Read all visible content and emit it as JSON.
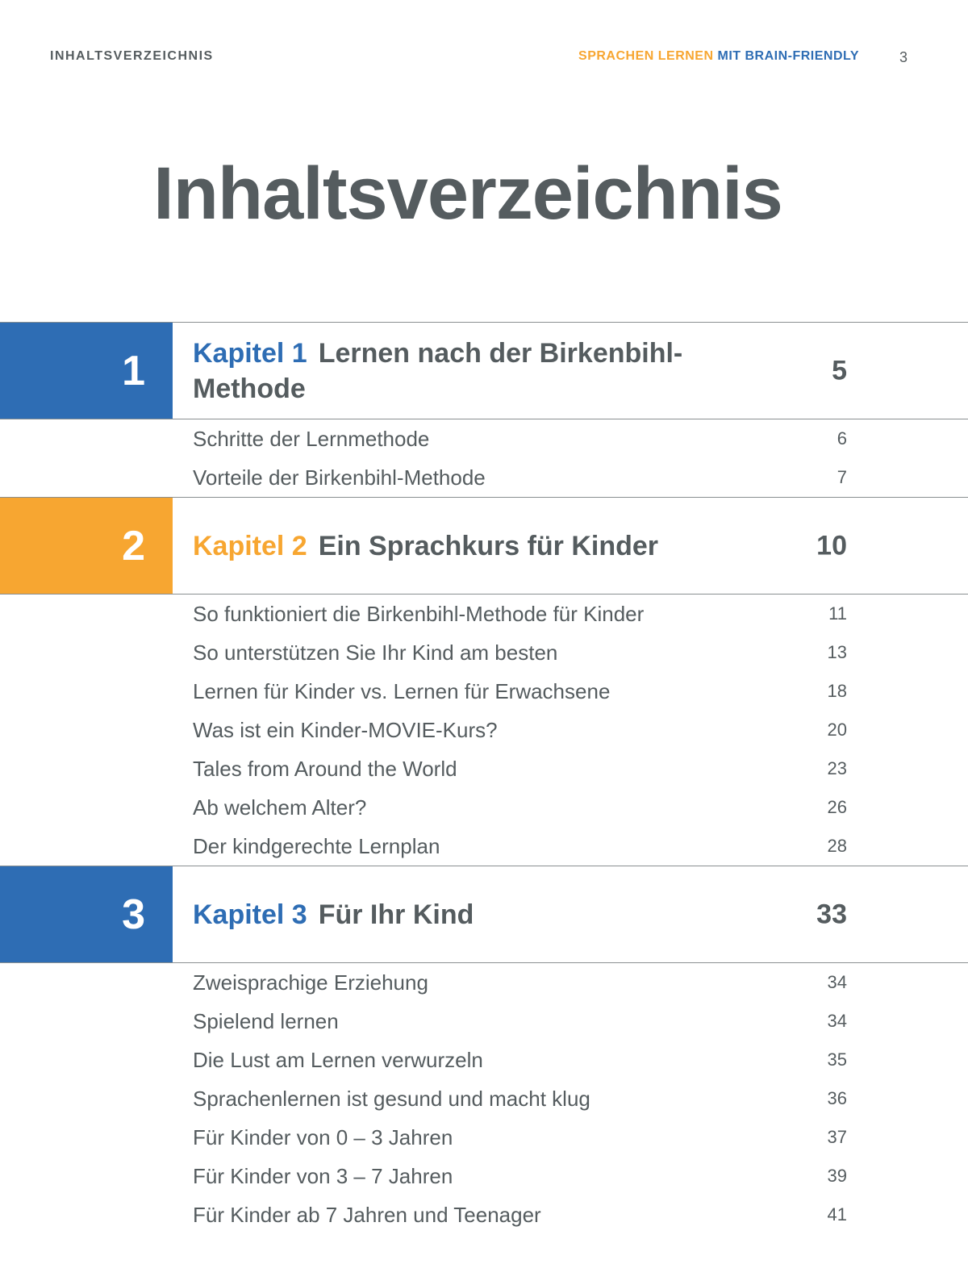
{
  "header": {
    "left": "INHALTSVERZEICHNIS",
    "right_orange": "SPRACHEN LERNEN",
    "right_blue": "MIT BRAIN-FRIENDLY",
    "page_number": "3"
  },
  "title": "Inhaltsverzeichnis",
  "colors": {
    "blue": "#2e6db4",
    "orange": "#f7a631",
    "text": "#555c5f"
  },
  "chapters": [
    {
      "number": "1",
      "label": "Kapitel 1",
      "title": "Lernen nach der Birkenbihl-Methode",
      "page": "5",
      "color": "#2e6db4",
      "sections": [
        {
          "title": "Schritte der Lernmethode",
          "page": "6"
        },
        {
          "title": "Vorteile der Birkenbihl-Methode",
          "page": "7"
        }
      ]
    },
    {
      "number": "2",
      "label": "Kapitel 2",
      "title": "Ein Sprachkurs für Kinder",
      "page": "10",
      "color": "#f7a631",
      "sections": [
        {
          "title": "So funktioniert die Birkenbihl-Methode für Kinder",
          "page": "11"
        },
        {
          "title": "So unterstützen Sie Ihr Kind am besten",
          "page": "13"
        },
        {
          "title": "Lernen für Kinder vs. Lernen für Erwachsene",
          "page": "18"
        },
        {
          "title": "Was ist ein Kinder-MOVIE-Kurs?",
          "page": "20"
        },
        {
          "title": "Tales from Around the World",
          "page": "23"
        },
        {
          "title": "Ab welchem Alter?",
          "page": "26"
        },
        {
          "title": "Der kindgerechte Lernplan",
          "page": "28"
        }
      ]
    },
    {
      "number": "3",
      "label": "Kapitel 3",
      "title": "Für Ihr Kind",
      "page": "33",
      "color": "#2e6db4",
      "sections": [
        {
          "title": "Zweisprachige Erziehung",
          "page": "34"
        },
        {
          "title": "Spielend lernen",
          "page": "34"
        },
        {
          "title": "Die Lust am Lernen verwurzeln",
          "page": "35"
        },
        {
          "title": "Sprachenlernen ist gesund und macht klug",
          "page": "36"
        },
        {
          "title": "Für Kinder von 0 – 3 Jahren",
          "page": "37"
        },
        {
          "title": "Für Kinder von 3 – 7 Jahren",
          "page": "39"
        },
        {
          "title": "Für Kinder ab 7 Jahren und Teenager",
          "page": "41"
        }
      ]
    }
  ]
}
